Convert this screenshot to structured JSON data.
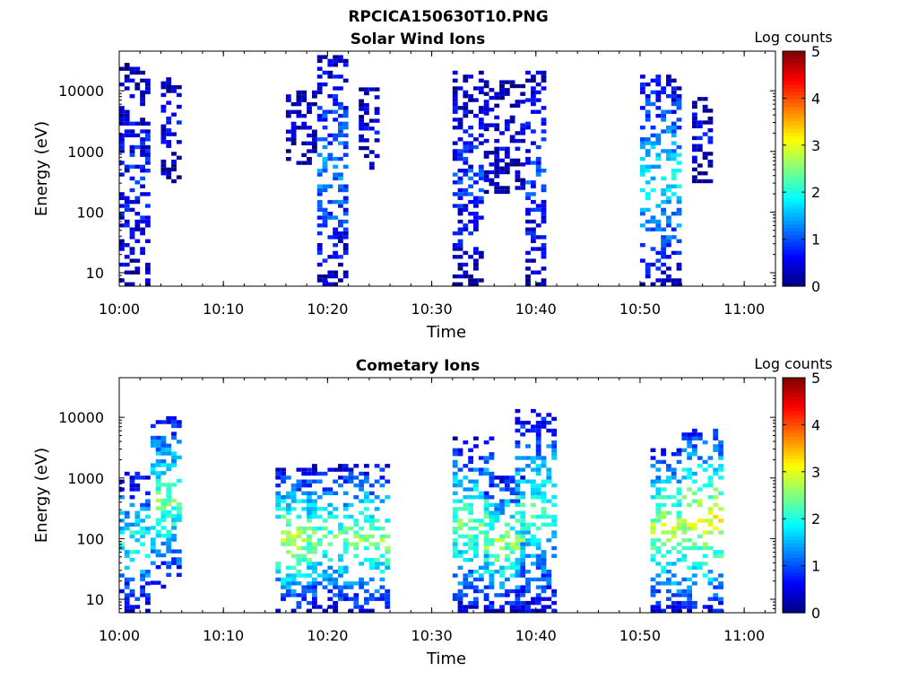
{
  "figure": {
    "title": "RPCICA150630T10.PNG"
  },
  "chart_data": [
    {
      "type": "heatmap",
      "title": "Solar Wind Ions",
      "xlabel": "Time",
      "ylabel": "Energy (eV)",
      "x_ticks": [
        "10:00",
        "10:10",
        "10:20",
        "10:30",
        "10:40",
        "10:50",
        "11:00"
      ],
      "y_ticks": [
        "10",
        "100",
        "1000",
        "10000"
      ],
      "y_scale": "log",
      "xlim_minutes_after_10": [
        0,
        63
      ],
      "ylim_eV": [
        6,
        45000
      ],
      "colorbar": {
        "label": "Log counts",
        "ticks": [
          "0",
          "1",
          "2",
          "3",
          "4",
          "5"
        ],
        "range": [
          0,
          5
        ]
      },
      "bursts": [
        {
          "t_start": "10:00",
          "t_end": "10:02",
          "e_min_eV": 6,
          "e_max_eV": 25000,
          "peak_log_counts": 0.8
        },
        {
          "t_start": "10:04",
          "t_end": "10:05",
          "e_min_eV": 300,
          "e_max_eV": 16000,
          "peak_log_counts": 0.5
        },
        {
          "t_start": "10:16",
          "t_end": "10:18",
          "e_min_eV": 600,
          "e_max_eV": 10000,
          "peak_log_counts": 0.5
        },
        {
          "t_start": "10:19",
          "t_end": "10:21",
          "e_min_eV": 6,
          "e_max_eV": 38000,
          "peak_log_counts": 1.3
        },
        {
          "t_start": "10:23",
          "t_end": "10:24",
          "e_min_eV": 500,
          "e_max_eV": 10000,
          "peak_log_counts": 0.5
        },
        {
          "t_start": "10:32",
          "t_end": "10:34",
          "e_min_eV": 6,
          "e_max_eV": 20000,
          "peak_log_counts": 0.9
        },
        {
          "t_start": "10:35",
          "t_end": "10:38",
          "e_min_eV": 200,
          "e_max_eV": 13000,
          "peak_log_counts": 0.5
        },
        {
          "t_start": "10:39",
          "t_end": "10:40",
          "e_min_eV": 6,
          "e_max_eV": 20000,
          "peak_log_counts": 0.9
        },
        {
          "t_start": "10:50",
          "t_end": "10:53",
          "e_min_eV": 6,
          "e_max_eV": 17000,
          "peak_log_counts": 1.8
        },
        {
          "t_start": "10:55",
          "t_end": "10:56",
          "e_min_eV": 300,
          "e_max_eV": 10000,
          "peak_log_counts": 0.5
        }
      ]
    },
    {
      "type": "heatmap",
      "title": "Cometary Ions",
      "xlabel": "Time",
      "ylabel": "Energy (eV)",
      "x_ticks": [
        "10:00",
        "10:10",
        "10:20",
        "10:30",
        "10:40",
        "10:50",
        "11:00"
      ],
      "y_ticks": [
        "10",
        "100",
        "1000",
        "10000"
      ],
      "y_scale": "log",
      "xlim_minutes_after_10": [
        0,
        63
      ],
      "ylim_eV": [
        6,
        45000
      ],
      "colorbar": {
        "label": "Log counts",
        "ticks": [
          "0",
          "1",
          "2",
          "3",
          "4",
          "5"
        ],
        "range": [
          0,
          5
        ]
      },
      "bursts": [
        {
          "t_start": "10:00",
          "t_end": "10:02",
          "e_min_eV": 6,
          "e_max_eV": 1200,
          "peak_log_counts": 2.0
        },
        {
          "t_start": "10:03",
          "t_end": "10:05",
          "e_min_eV": 15,
          "e_max_eV": 10000,
          "peak_log_counts": 2.4
        },
        {
          "t_start": "10:15",
          "t_end": "10:18",
          "e_min_eV": 6,
          "e_max_eV": 1300,
          "peak_log_counts": 2.8
        },
        {
          "t_start": "10:18",
          "t_end": "10:21",
          "e_min_eV": 6,
          "e_max_eV": 1500,
          "peak_log_counts": 2.4
        },
        {
          "t_start": "10:22",
          "t_end": "10:25",
          "e_min_eV": 6,
          "e_max_eV": 1500,
          "peak_log_counts": 2.6
        },
        {
          "t_start": "10:32",
          "t_end": "10:35",
          "e_min_eV": 6,
          "e_max_eV": 4500,
          "peak_log_counts": 2.4
        },
        {
          "t_start": "10:35",
          "t_end": "10:38",
          "e_min_eV": 6,
          "e_max_eV": 1000,
          "peak_log_counts": 2.6
        },
        {
          "t_start": "10:38",
          "t_end": "10:41",
          "e_min_eV": 6,
          "e_max_eV": 13000,
          "peak_log_counts": 2.2
        },
        {
          "t_start": "10:51",
          "t_end": "10:53",
          "e_min_eV": 6,
          "e_max_eV": 3000,
          "peak_log_counts": 2.8
        },
        {
          "t_start": "10:54",
          "t_end": "10:57",
          "e_min_eV": 6,
          "e_max_eV": 6500,
          "peak_log_counts": 3.0
        }
      ]
    }
  ]
}
